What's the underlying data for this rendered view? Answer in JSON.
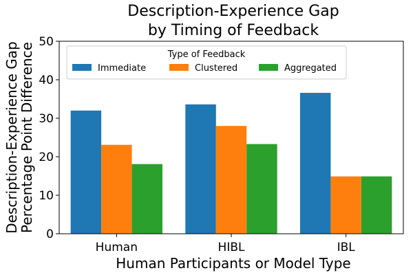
{
  "chart_data": {
    "type": "bar",
    "title_lines": [
      "Description-Experience Gap",
      "by Timing of Feedback"
    ],
    "xlabel": "Human Participants or Model Type",
    "ylabel_lines": [
      "Description-Experience Gap",
      "Percentage Point Difference"
    ],
    "categories": [
      "Human",
      "HIBL",
      "IBL"
    ],
    "series": [
      {
        "name": "Immediate",
        "color": "#1f77b4",
        "values": [
          32.0,
          33.6,
          36.6
        ]
      },
      {
        "name": "Clustered",
        "color": "#ff7f0e",
        "values": [
          23.1,
          28.0,
          14.9
        ]
      },
      {
        "name": "Aggregated",
        "color": "#2ca02c",
        "values": [
          18.1,
          23.3,
          14.9
        ]
      }
    ],
    "ylim": [
      0,
      50
    ],
    "yticks": [
      0,
      10,
      20,
      30,
      40,
      50
    ],
    "legend": {
      "title": "Type of Feedback",
      "placement": "top-left",
      "columns": 3
    },
    "grid": false
  }
}
